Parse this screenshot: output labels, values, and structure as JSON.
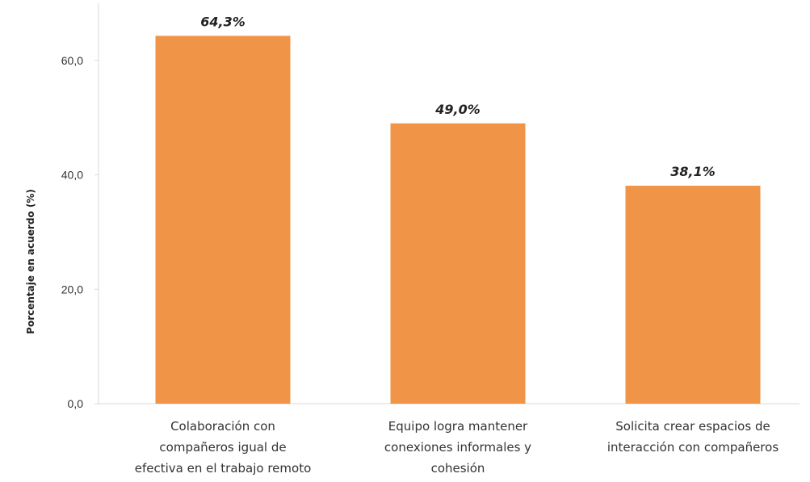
{
  "chart_data": {
    "type": "bar",
    "categories": [
      [
        "Colaboración con",
        "compañeros igual de",
        "efectiva en el trabajo remoto"
      ],
      [
        "Equipo logra mantener",
        "conexiones informales y",
        "cohesión"
      ],
      [
        "Solicita crear espacios de",
        "interacción con compañeros"
      ]
    ],
    "values": [
      64.3,
      49.0,
      38.1
    ],
    "data_labels": [
      "64,3%",
      "49,0%",
      "38,1%"
    ],
    "ylabel": "Porcentaje en acuerdo (%)",
    "ylim": [
      0,
      70
    ],
    "yticks": [
      0,
      20,
      40,
      60
    ],
    "ytick_labels": [
      "0,0",
      "20,0",
      "40,0",
      "60,0"
    ],
    "grid": false,
    "legend": "none",
    "bar_color": "#F09547",
    "axis_color": "#D9D9D9"
  }
}
